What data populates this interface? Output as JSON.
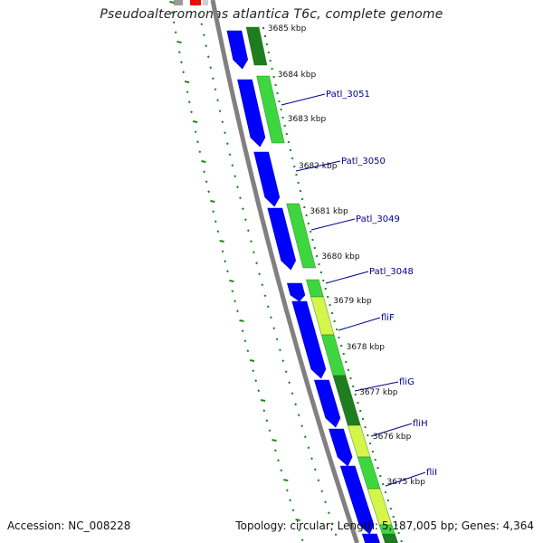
{
  "title": "Pseudoalteromonas atlantica T6c, complete genome",
  "footer": {
    "accession": "Accession: NC_008228",
    "summary": "Topology: circular; Length: 5,187,005 bp; Genes: 4,364"
  },
  "colors": {
    "cds": "#0000ff",
    "cds_dark": "#0000cc",
    "gc_dark": "#1e7d1e",
    "gc_light": "#3ed63e",
    "gc_yellow": "#d4f54a",
    "backbone": "#808080",
    "gc_skew_dots": "#1b8a1b",
    "label": "#00008b"
  },
  "ticks": [
    "3685 kbp",
    "3684 kbp",
    "3683 kbp",
    "3682 kbp",
    "3681 kbp",
    "3680 kbp",
    "3679 kbp",
    "3678 kbp",
    "3677 kbp",
    "3676 kbp",
    "3675 kbp"
  ],
  "genes": [
    "Patl_3051",
    "Patl_3050",
    "Patl_3049",
    "Patl_3048",
    "fliF",
    "fliG",
    "fliH",
    "fliI"
  ]
}
